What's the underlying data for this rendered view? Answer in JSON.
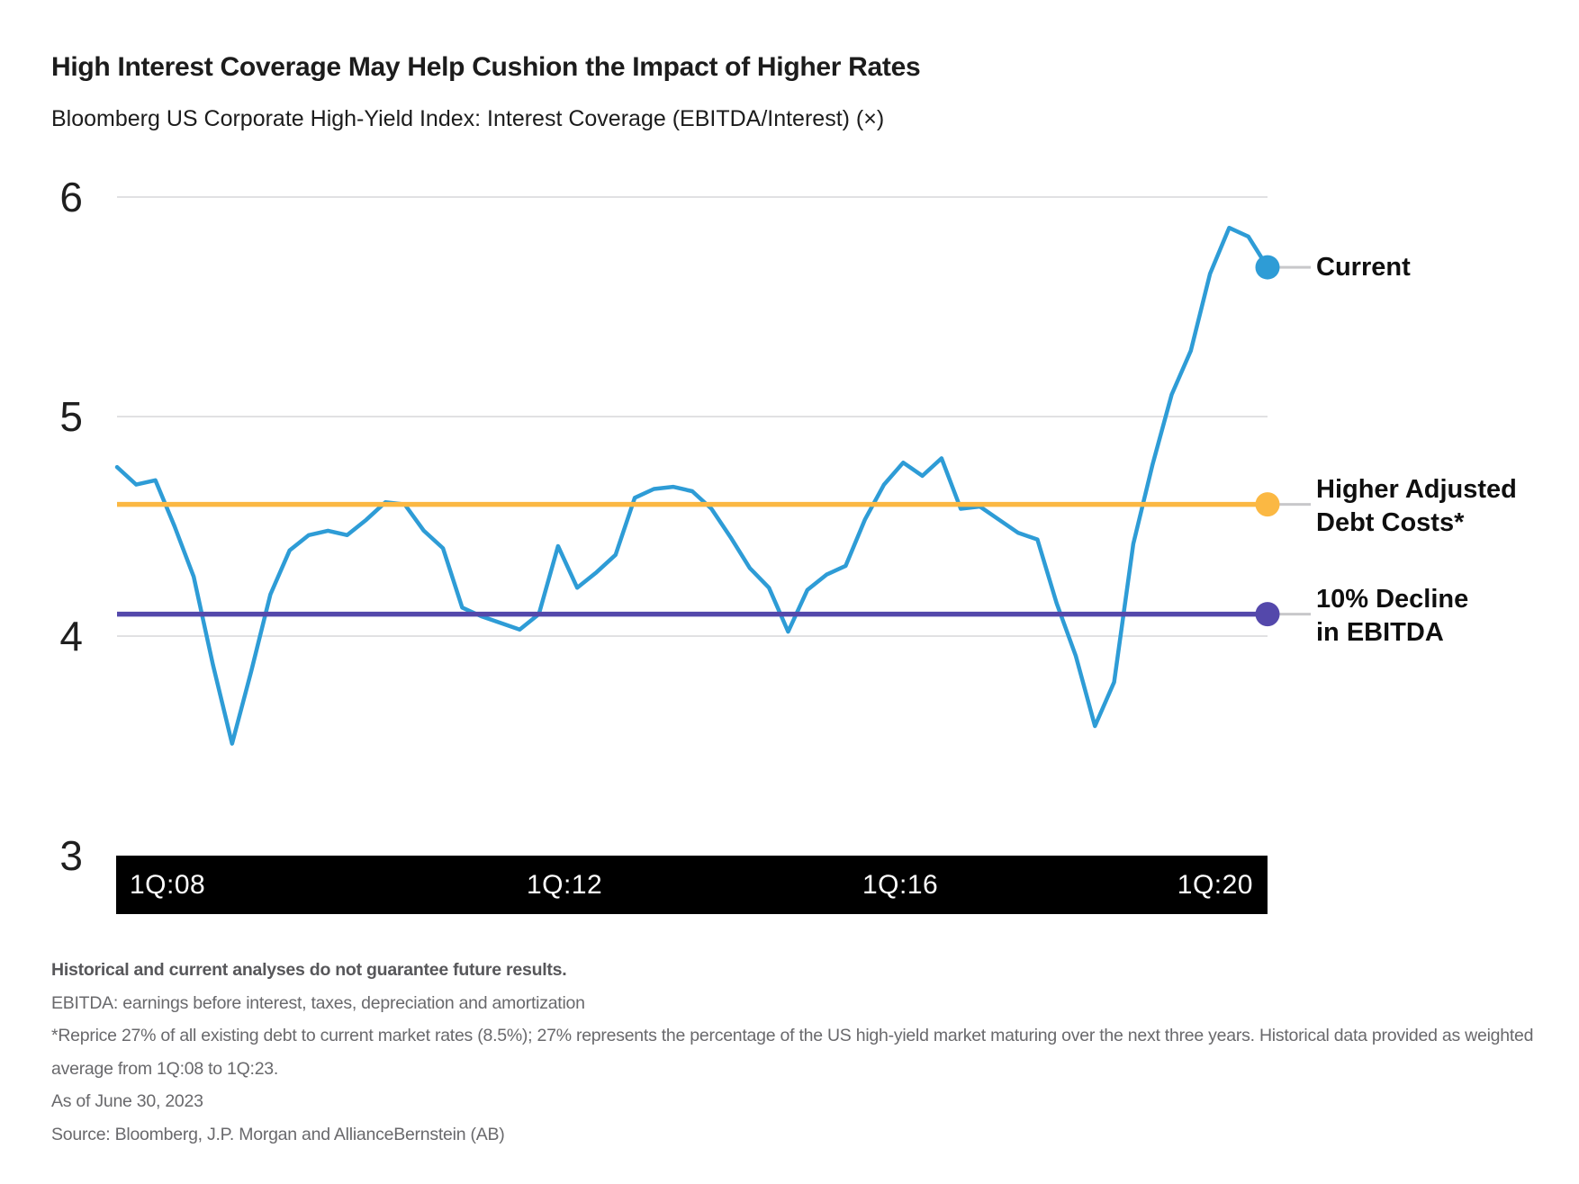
{
  "header": {
    "title": "High Interest Coverage May Help Cushion the Impact of Higher Rates",
    "subtitle": "Bloomberg US Corporate High-Yield Index: Interest Coverage (EBITDA/Interest) (×)"
  },
  "chart_data": {
    "type": "line",
    "title": "Bloomberg US Corporate High-Yield Index: Interest Coverage (EBITDA/Interest) (×)",
    "frequency": "quarterly",
    "x_start": "1Q:08",
    "x_end": "1Q:23",
    "x_ticks": [
      "1Q:08",
      "1Q:12",
      "1Q:16",
      "1Q:20"
    ],
    "ylim": [
      3,
      6
    ],
    "y_ticks": [
      3,
      4,
      5,
      6
    ],
    "grid": "horizontal",
    "legend_position": "right",
    "series": [
      {
        "name": "Interest Coverage (EBITDA/Interest)",
        "color": "#2E9CD6",
        "values": [
          4.77,
          4.69,
          4.71,
          4.5,
          4.27,
          3.87,
          3.51,
          3.84,
          4.19,
          4.39,
          4.46,
          4.48,
          4.46,
          4.53,
          4.61,
          4.6,
          4.48,
          4.4,
          4.13,
          4.09,
          4.06,
          4.03,
          4.1,
          4.41,
          4.22,
          4.29,
          4.37,
          4.63,
          4.67,
          4.68,
          4.66,
          4.58,
          4.45,
          4.31,
          4.22,
          4.02,
          4.21,
          4.28,
          4.32,
          4.53,
          4.69,
          4.79,
          4.73,
          4.81,
          4.58,
          4.59,
          4.53,
          4.47,
          4.44,
          4.15,
          3.91,
          3.59,
          3.79,
          4.42,
          4.78,
          5.1,
          5.3,
          5.65,
          5.86,
          5.82,
          5.68
        ]
      }
    ],
    "reference_lines": [
      {
        "name": "Higher Adjusted Debt Costs*",
        "value": 4.6,
        "color": "#FBB843"
      },
      {
        "name": "10% Decline in EBITDA",
        "value": 4.1,
        "color": "#5448AB"
      }
    ],
    "end_marker": {
      "label": "Current",
      "value": 5.68,
      "color": "#2E9CD6"
    }
  },
  "y_axis": {
    "labels": [
      "6",
      "5",
      "4",
      "3"
    ]
  },
  "x_axis": {
    "labels": [
      "1Q:08",
      "1Q:12",
      "1Q:16",
      "1Q:20"
    ]
  },
  "legend": {
    "current_label": "Current",
    "higher_line1": "Higher Adjusted",
    "higher_line2": "Debt Costs*",
    "decline_line1": "10% Decline",
    "decline_line2": "in EBITDA"
  },
  "footnotes": {
    "disclaimer": "Historical and current analyses do not guarantee future results.",
    "ebitda": "EBITDA: earnings before interest, taxes, depreciation and amortization",
    "reprice": "*Reprice 27% of all existing debt to current market rates (8.5%); 27% represents the percentage of the US high-yield market maturing over the next three years. Historical data provided as weighted average from 1Q:08 to 1Q:23.",
    "as_of": "As of June 30, 2023",
    "source": "Source: Bloomberg, J.P. Morgan and AllianceBernstein (AB)"
  },
  "colors": {
    "line_blue": "#2E9CD6",
    "line_yellow": "#FBB843",
    "line_purple": "#5448AB",
    "gridline": "#E1E1E3",
    "connector": "#C8C8CA",
    "axis_bar_bg": "#000000",
    "axis_bar_text": "#FFFFFF",
    "title_text": "#1C1C1C",
    "footnote_text": "#69696C"
  }
}
